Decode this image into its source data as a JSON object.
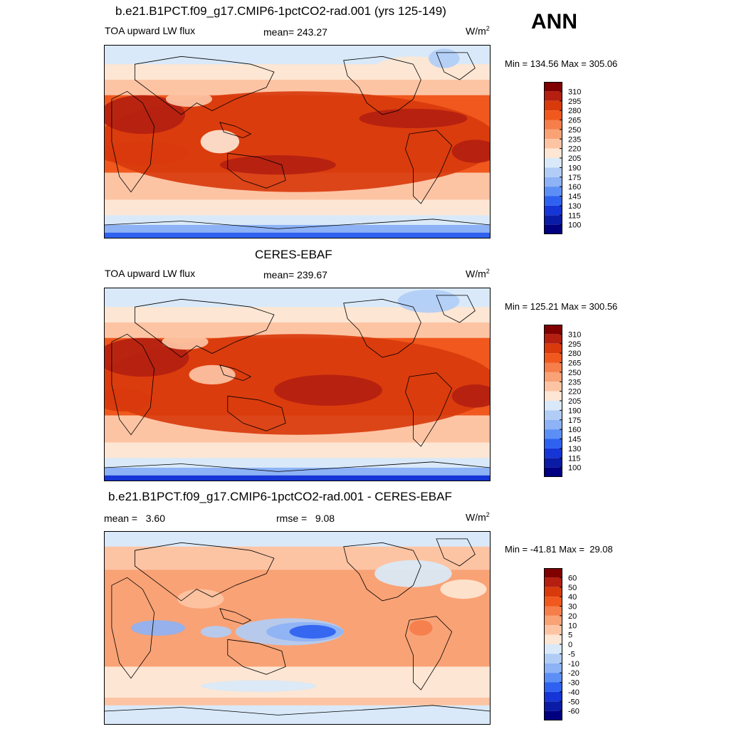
{
  "season": "ANN",
  "palettes": {
    "abs": [
      "#800000",
      "#b41f10",
      "#d93a0c",
      "#f0581d",
      "#f57e4b",
      "#f9a275",
      "#fdc4a4",
      "#fde6d3",
      "#d9e9f9",
      "#b1cdf6",
      "#8db2f5",
      "#5c8ff6",
      "#2e61ef",
      "#1535d6",
      "#0a1ba6",
      "#000080"
    ],
    "diff": [
      "#800000",
      "#b41f10",
      "#d93a0c",
      "#f0581d",
      "#f57e4b",
      "#f9a275",
      "#fdc4a4",
      "#fde6d3",
      "#d9e9f9",
      "#b1cdf6",
      "#8db2f5",
      "#5c8ff6",
      "#2e61ef",
      "#1535d6",
      "#0a1ba6",
      "#000080"
    ]
  },
  "panels": [
    {
      "title": "b.e21.B1PCT.f09_g17.CMIP6-1pctCO2-rad.001 (yrs 125-149)",
      "left_label": "TOA upward LW flux",
      "center_label": "mean= 243.27",
      "units": "W/m",
      "units_sup": "2",
      "minmax": "Min = 134.56 Max = 305.06",
      "colorbar_labels": [
        "310",
        "295",
        "280",
        "265",
        "250",
        "235",
        "220",
        "205",
        "190",
        "175",
        "160",
        "145",
        "130",
        "115",
        "100"
      ],
      "palette": "abs"
    },
    {
      "title": "CERES-EBAF",
      "left_label": "TOA upward LW flux",
      "center_label": "mean= 239.67",
      "units": "W/m",
      "units_sup": "2",
      "minmax": "Min = 125.21 Max = 300.56",
      "colorbar_labels": [
        "310",
        "295",
        "280",
        "265",
        "250",
        "235",
        "220",
        "205",
        "190",
        "175",
        "160",
        "145",
        "130",
        "115",
        "100"
      ],
      "palette": "abs"
    },
    {
      "title": "b.e21.B1PCT.f09_g17.CMIP6-1pctCO2-rad.001 - CERES-EBAF",
      "left_label": "mean =   3.60",
      "center_label": "rmse =   9.08",
      "units": "W/m",
      "units_sup": "2",
      "minmax": "Min = -41.81 Max =  29.08",
      "colorbar_labels": [
        "60",
        "50",
        "40",
        "30",
        "20",
        "10",
        "5",
        "0",
        "-5",
        "-10",
        "-20",
        "-30",
        "-40",
        "-50",
        "-60"
      ],
      "palette": "diff"
    }
  ]
}
